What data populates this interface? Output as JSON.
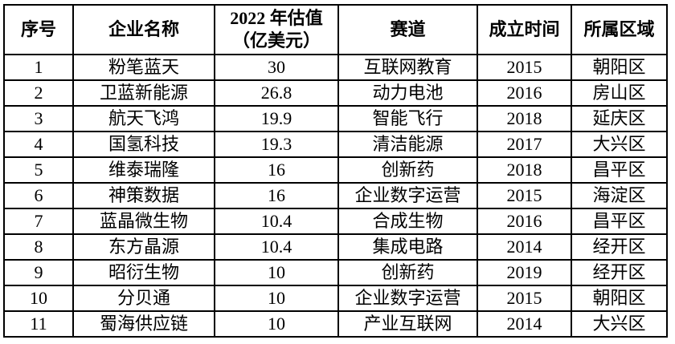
{
  "table": {
    "columns": [
      {
        "key": "index",
        "label": "序号"
      },
      {
        "key": "name",
        "label": "企业名称"
      },
      {
        "key": "valuation",
        "label": "2022 年估值\n（亿美元）"
      },
      {
        "key": "track",
        "label": "赛道"
      },
      {
        "key": "founded",
        "label": "成立时间"
      },
      {
        "key": "district",
        "label": "所属区域"
      }
    ],
    "rows": [
      [
        "1",
        "粉笔蓝天",
        "30",
        "互联网教育",
        "2015",
        "朝阳区"
      ],
      [
        "2",
        "卫蓝新能源",
        "26.8",
        "动力电池",
        "2016",
        "房山区"
      ],
      [
        "3",
        "航天飞鸿",
        "19.9",
        "智能飞行",
        "2018",
        "延庆区"
      ],
      [
        "4",
        "国氢科技",
        "19.3",
        "清洁能源",
        "2017",
        "大兴区"
      ],
      [
        "5",
        "维泰瑞隆",
        "16",
        "创新药",
        "2018",
        "昌平区"
      ],
      [
        "6",
        "神策数据",
        "16",
        "企业数字运营",
        "2015",
        "海淀区"
      ],
      [
        "7",
        "蓝晶微生物",
        "10.4",
        "合成生物",
        "2016",
        "昌平区"
      ],
      [
        "8",
        "东方晶源",
        "10.4",
        "集成电路",
        "2014",
        "经开区"
      ],
      [
        "9",
        "昭衍生物",
        "10",
        "创新药",
        "2019",
        "经开区"
      ],
      [
        "10",
        "分贝通",
        "10",
        "企业数字运营",
        "2015",
        "朝阳区"
      ],
      [
        "11",
        "蜀海供应链",
        "10",
        "产业互联网",
        "2014",
        "大兴区"
      ]
    ],
    "style": {
      "border_color": "#000000",
      "text_color": "#000000",
      "background_color": "#ffffff"
    }
  }
}
